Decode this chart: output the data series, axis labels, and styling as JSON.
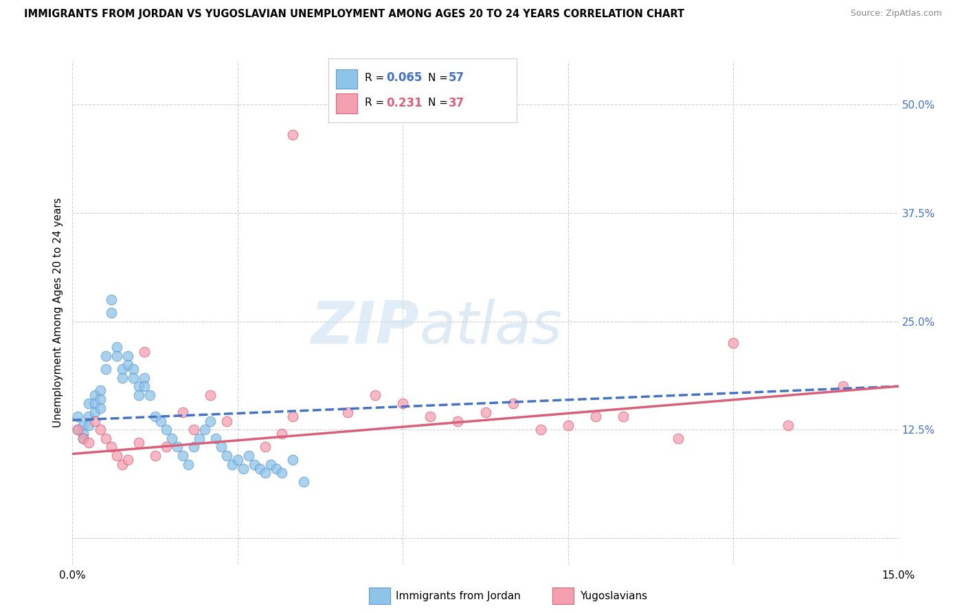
{
  "title": "IMMIGRANTS FROM JORDAN VS YUGOSLAVIAN UNEMPLOYMENT AMONG AGES 20 TO 24 YEARS CORRELATION CHART",
  "source": "Source: ZipAtlas.com",
  "ylabel": "Unemployment Among Ages 20 to 24 years",
  "xlim": [
    0,
    0.15
  ],
  "ylim": [
    -0.03,
    0.55
  ],
  "xticks": [
    0.0,
    0.03,
    0.06,
    0.09,
    0.12,
    0.15
  ],
  "xticklabels": [
    "0.0%",
    "",
    "",
    "",
    "",
    "15.0%"
  ],
  "yticks_right": [
    0.0,
    0.125,
    0.25,
    0.375,
    0.5
  ],
  "yticks_right_labels": [
    "",
    "12.5%",
    "25.0%",
    "37.5%",
    "50.0%"
  ],
  "color_jordan": "#8ec4e8",
  "color_jordan_edge": "#5b9bd5",
  "color_yugo": "#f4a0b0",
  "color_yugo_edge": "#d9607a",
  "color_jordan_line": "#4472c4",
  "color_yugo_line": "#d9607a",
  "color_right_axis": "#4472c4",
  "watermark_zip": "ZIP",
  "watermark_atlas": "atlas",
  "grid_color": "#d0d0d0",
  "background_color": "#ffffff",
  "jordan_x": [
    0.001,
    0.001,
    0.002,
    0.002,
    0.002,
    0.003,
    0.003,
    0.003,
    0.004,
    0.004,
    0.004,
    0.005,
    0.005,
    0.005,
    0.006,
    0.006,
    0.007,
    0.007,
    0.008,
    0.008,
    0.009,
    0.009,
    0.01,
    0.01,
    0.011,
    0.011,
    0.012,
    0.012,
    0.013,
    0.013,
    0.014,
    0.015,
    0.016,
    0.017,
    0.018,
    0.019,
    0.02,
    0.021,
    0.022,
    0.023,
    0.024,
    0.025,
    0.026,
    0.027,
    0.028,
    0.029,
    0.03,
    0.031,
    0.032,
    0.033,
    0.034,
    0.035,
    0.036,
    0.037,
    0.038,
    0.04,
    0.042
  ],
  "jordan_y": [
    0.14,
    0.125,
    0.13,
    0.12,
    0.115,
    0.155,
    0.14,
    0.13,
    0.165,
    0.155,
    0.145,
    0.17,
    0.16,
    0.15,
    0.21,
    0.195,
    0.275,
    0.26,
    0.22,
    0.21,
    0.195,
    0.185,
    0.21,
    0.2,
    0.195,
    0.185,
    0.175,
    0.165,
    0.185,
    0.175,
    0.165,
    0.14,
    0.135,
    0.125,
    0.115,
    0.105,
    0.095,
    0.085,
    0.105,
    0.115,
    0.125,
    0.135,
    0.115,
    0.105,
    0.095,
    0.085,
    0.09,
    0.08,
    0.095,
    0.085,
    0.08,
    0.075,
    0.085,
    0.08,
    0.075,
    0.09,
    0.065
  ],
  "yugo_x": [
    0.001,
    0.002,
    0.003,
    0.004,
    0.005,
    0.006,
    0.007,
    0.008,
    0.009,
    0.01,
    0.012,
    0.013,
    0.015,
    0.017,
    0.02,
    0.022,
    0.025,
    0.028,
    0.035,
    0.038,
    0.04,
    0.05,
    0.055,
    0.06,
    0.065,
    0.07,
    0.075,
    0.08,
    0.085,
    0.09,
    0.095,
    0.1,
    0.11,
    0.12,
    0.13,
    0.14,
    0.04
  ],
  "yugo_y": [
    0.125,
    0.115,
    0.11,
    0.135,
    0.125,
    0.115,
    0.105,
    0.095,
    0.085,
    0.09,
    0.11,
    0.215,
    0.095,
    0.105,
    0.145,
    0.125,
    0.165,
    0.135,
    0.105,
    0.12,
    0.14,
    0.145,
    0.165,
    0.155,
    0.14,
    0.135,
    0.145,
    0.155,
    0.125,
    0.13,
    0.14,
    0.14,
    0.115,
    0.225,
    0.13,
    0.175,
    0.465
  ],
  "jordan_line_x0": 0.0,
  "jordan_line_y0": 0.136,
  "jordan_line_x1": 0.15,
  "jordan_line_y1": 0.175,
  "yugo_line_x0": 0.0,
  "yugo_line_y0": 0.097,
  "yugo_line_x1": 0.15,
  "yugo_line_y1": 0.175
}
